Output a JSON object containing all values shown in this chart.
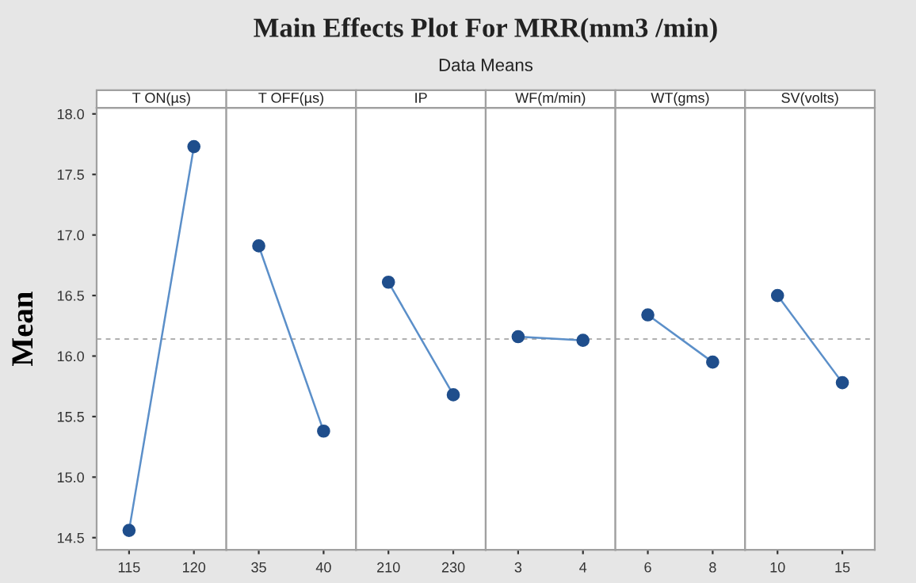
{
  "chart_data": [
    {
      "type": "other",
      "title": "Main Effects Plot For MRR(mm3 /min)",
      "subtitle": "Data Means"
    },
    {
      "type": "line",
      "annotations": [
        "T ON(µs)"
      ],
      "ylabel": "Mean",
      "categories": [
        "115",
        "120"
      ],
      "series": [
        {
          "color": "#1f4e8c",
          "values": [
            14.56,
            17.73
          ]
        }
      ],
      "ylim": [
        14.4,
        18.05
      ],
      "yticks": [
        {
          "value": 14.5,
          "label": "14.5"
        },
        {
          "value": 15.0,
          "label": "15.0"
        },
        {
          "value": 15.5,
          "label": "15.5"
        },
        {
          "value": 16.0,
          "label": "16.0"
        },
        {
          "value": 16.5,
          "label": "16.5"
        },
        {
          "value": 17.0,
          "label": "17.0"
        },
        {
          "value": 17.5,
          "label": "17.5"
        },
        {
          "value": 18.0,
          "label": "18.0"
        }
      ],
      "ref_lines": [
        {
          "axis": "y",
          "value": 16.14,
          "color": "#b0b0b0",
          "line_style": "dashed"
        }
      ],
      "marker": "circle",
      "grid": false,
      "legend": false
    },
    {
      "type": "line",
      "annotations": [
        "T OFF(µs)"
      ],
      "categories": [
        "35",
        "40"
      ],
      "series": [
        {
          "color": "#1f4e8c",
          "values": [
            16.91,
            15.38
          ]
        }
      ],
      "ylim": [
        14.4,
        18.05
      ],
      "tick_labels": "x",
      "ref_lines": [
        {
          "axis": "y",
          "value": 16.14,
          "color": "#b0b0b0",
          "line_style": "dashed"
        }
      ],
      "marker": "circle",
      "grid": false,
      "legend": false
    },
    {
      "type": "line",
      "annotations": [
        "IP"
      ],
      "categories": [
        "210",
        "230"
      ],
      "series": [
        {
          "color": "#1f4e8c",
          "values": [
            16.61,
            15.68
          ]
        }
      ],
      "ylim": [
        14.4,
        18.05
      ],
      "tick_labels": "x",
      "ref_lines": [
        {
          "axis": "y",
          "value": 16.14,
          "color": "#b0b0b0",
          "line_style": "dashed"
        }
      ],
      "marker": "circle",
      "grid": false,
      "legend": false
    },
    {
      "type": "line",
      "annotations": [
        "WF(m/min)"
      ],
      "categories": [
        "3",
        "4"
      ],
      "series": [
        {
          "color": "#1f4e8c",
          "values": [
            16.16,
            16.13
          ]
        }
      ],
      "ylim": [
        14.4,
        18.05
      ],
      "tick_labels": "x",
      "ref_lines": [
        {
          "axis": "y",
          "value": 16.14,
          "color": "#b0b0b0",
          "line_style": "dashed"
        }
      ],
      "marker": "circle",
      "grid": false,
      "legend": false
    },
    {
      "type": "line",
      "annotations": [
        "WT(gms)"
      ],
      "categories": [
        "6",
        "8"
      ],
      "series": [
        {
          "color": "#1f4e8c",
          "values": [
            16.34,
            15.95
          ]
        }
      ],
      "ylim": [
        14.4,
        18.05
      ],
      "tick_labels": "x",
      "ref_lines": [
        {
          "axis": "y",
          "value": 16.14,
          "color": "#b0b0b0",
          "line_style": "dashed"
        }
      ],
      "marker": "circle",
      "grid": false,
      "legend": false
    },
    {
      "type": "line",
      "annotations": [
        "SV(volts)"
      ],
      "categories": [
        "10",
        "15"
      ],
      "series": [
        {
          "color": "#1f4e8c",
          "values": [
            16.5,
            15.78
          ]
        }
      ],
      "ylim": [
        14.4,
        18.05
      ],
      "tick_labels": "x",
      "ref_lines": [
        {
          "axis": "y",
          "value": 16.14,
          "color": "#b0b0b0",
          "line_style": "dashed"
        }
      ],
      "marker": "circle",
      "grid": false,
      "legend": false
    }
  ]
}
